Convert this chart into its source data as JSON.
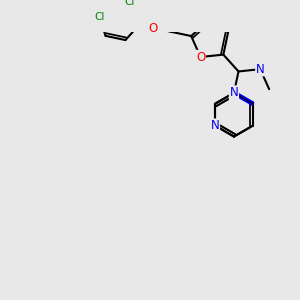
{
  "background_color": "#e8e8e8",
  "bond_color": "#000000",
  "bond_width": 1.5,
  "atom_colors": {
    "N": "#0000ee",
    "O": "#ff0000",
    "Cl": "#008000",
    "C": "#000000"
  },
  "font_size_atom": 8.5
}
